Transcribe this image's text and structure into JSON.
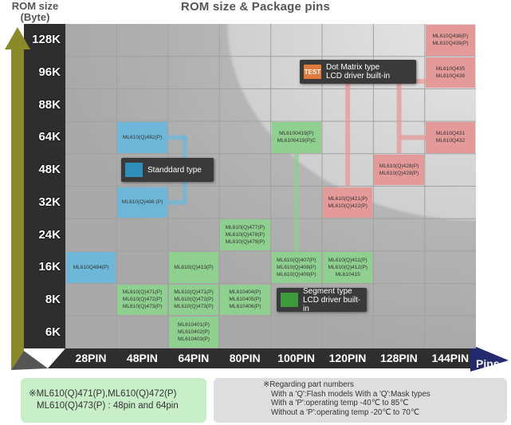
{
  "title": "ROM size & Package pins",
  "y_axis_title_line1": "ROM size",
  "y_axis_title_line2": "(Byte)",
  "x_axis_title": "Pins",
  "colors": {
    "grid_bg": "#b3b3b3",
    "grid_line": "#a0a0a0",
    "axis_dark": "#2a2a2a",
    "arrow_y": "#8a8a2a",
    "arrow_x": "#232a6e",
    "blue": "#6fb7d8",
    "green": "#8fcf8f",
    "pink": "#e59a9a"
  },
  "chart_data": {
    "type": "table",
    "y_categories": [
      "6K",
      "8K",
      "16K",
      "24K",
      "32K",
      "48K",
      "64K",
      "88K",
      "96K",
      "128K"
    ],
    "x_categories": [
      "28PIN",
      "48PIN",
      "64PIN",
      "80PIN",
      "100PIN",
      "120PIN",
      "128PIN",
      "144PIN"
    ],
    "cells": [
      {
        "pin": "28PIN",
        "rom": "16K",
        "group": "blue",
        "parts": [
          "ML610Q484(P)"
        ]
      },
      {
        "pin": "48PIN",
        "rom": "64K",
        "group": "blue",
        "parts": [
          "ML610(Q)482(P)"
        ]
      },
      {
        "pin": "48PIN",
        "rom": "32K",
        "group": "blue",
        "parts": [
          "ML610(Q)486 (P)"
        ]
      },
      {
        "pin": "48PIN",
        "rom": "8K",
        "group": "green",
        "parts": [
          "ML610(Q)471(P)",
          "ML610(Q)472(P)",
          "ML610(Q)473(P)"
        ]
      },
      {
        "pin": "64PIN",
        "rom": "16K",
        "group": "green",
        "parts": [
          "ML610(Q)413(P)"
        ]
      },
      {
        "pin": "64PIN",
        "rom": "8K",
        "group": "green",
        "parts": [
          "ML610(Q)471(P)",
          "ML610(Q)472(P)",
          "ML610(Q)473(P)"
        ]
      },
      {
        "pin": "64PIN",
        "rom": "6K",
        "group": "green",
        "parts": [
          "ML610401(P)",
          "ML610402(P)",
          "ML610403(P)"
        ]
      },
      {
        "pin": "80PIN",
        "rom": "24K",
        "group": "green",
        "parts": [
          "ML610(Q)477(P)",
          "ML610(Q)478(P)",
          "ML610(Q)479(P)"
        ]
      },
      {
        "pin": "80PIN",
        "rom": "8K",
        "group": "green",
        "parts": [
          "ML610404(P)",
          "ML610405(P)",
          "ML610406(P)"
        ]
      },
      {
        "pin": "100PIN",
        "rom": "64K",
        "group": "green",
        "parts": [
          "ML6100419(P)",
          "ML6100419(P)C"
        ]
      },
      {
        "pin": "100PIN",
        "rom": "16K",
        "group": "green",
        "parts": [
          "ML610(Q)407(P)",
          "ML610(Q)408(P)",
          "ML610(Q)409(P)"
        ]
      },
      {
        "pin": "120PIN",
        "rom": "16K",
        "group": "green",
        "parts": [
          "ML610(Q)411(P)",
          "ML610(Q)412(P)",
          "ML610415"
        ]
      },
      {
        "pin": "120PIN",
        "rom": "32K",
        "group": "pink",
        "parts": [
          "ML610(Q)421(P)",
          "ML610(Q)422(P)"
        ]
      },
      {
        "pin": "128PIN",
        "rom": "48K",
        "group": "pink",
        "parts": [
          "ML610(Q)428(P)",
          "ML610(Q)429(P)"
        ]
      },
      {
        "pin": "144PIN",
        "rom": "64K",
        "group": "pink",
        "parts": [
          "ML610Q431",
          "ML610Q432"
        ]
      },
      {
        "pin": "144PIN",
        "rom": "96K",
        "group": "pink",
        "parts": [
          "ML610Q435",
          "ML610Q436"
        ]
      },
      {
        "pin": "144PIN",
        "rom": "128K",
        "group": "pink",
        "parts": [
          "ML610Q438(P)",
          "ML610Q439(P)"
        ]
      }
    ],
    "callouts": [
      {
        "group": "blue",
        "icon": "standard-type-icon",
        "lines": [
          "Standdard type"
        ]
      },
      {
        "group": "green",
        "icon": "segment-type-icon",
        "lines": [
          "Segment type",
          "LCD driver built-in"
        ]
      },
      {
        "group": "pink",
        "icon": "dot-matrix-type-icon",
        "icon_text": "TEST",
        "lines": [
          "Dot Matrix type",
          "LCD driver built-in"
        ]
      }
    ]
  },
  "note_left": {
    "line1": "※ML610(Q)471(P),ML610(Q)472(P)",
    "line2": "ML610(Q)473(P) : 48pin and 64pin"
  },
  "note_right": {
    "lines": [
      "※Regarding part numbers",
      "With a 'Q':Flash models   With a 'Q':Mask types",
      "With a 'P':operating temp -40℃ to 85℃",
      "Without a 'P':operating temp -20℃ to 70℃"
    ]
  }
}
